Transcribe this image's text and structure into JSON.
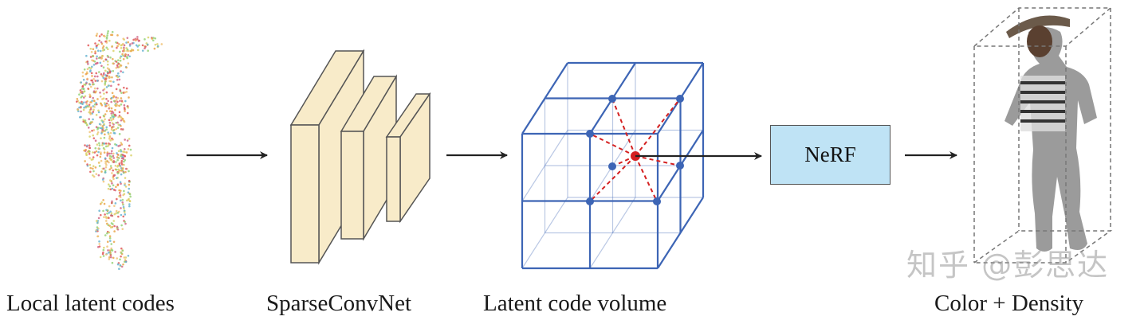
{
  "labels": {
    "input": "Local latent codes",
    "network": "SparseConvNet",
    "volume": "Latent code volume",
    "output": "Color + Density"
  },
  "nerf_box": {
    "label": "NeRF",
    "fill": "#bfe3f5"
  },
  "watermark": "知乎 @彭思达",
  "colors": {
    "grid": "#3d65b5",
    "vertex": "#3d65b5",
    "query_point": "#d42020",
    "conv_block": "#f8ebc9",
    "arrow": "#222222"
  }
}
